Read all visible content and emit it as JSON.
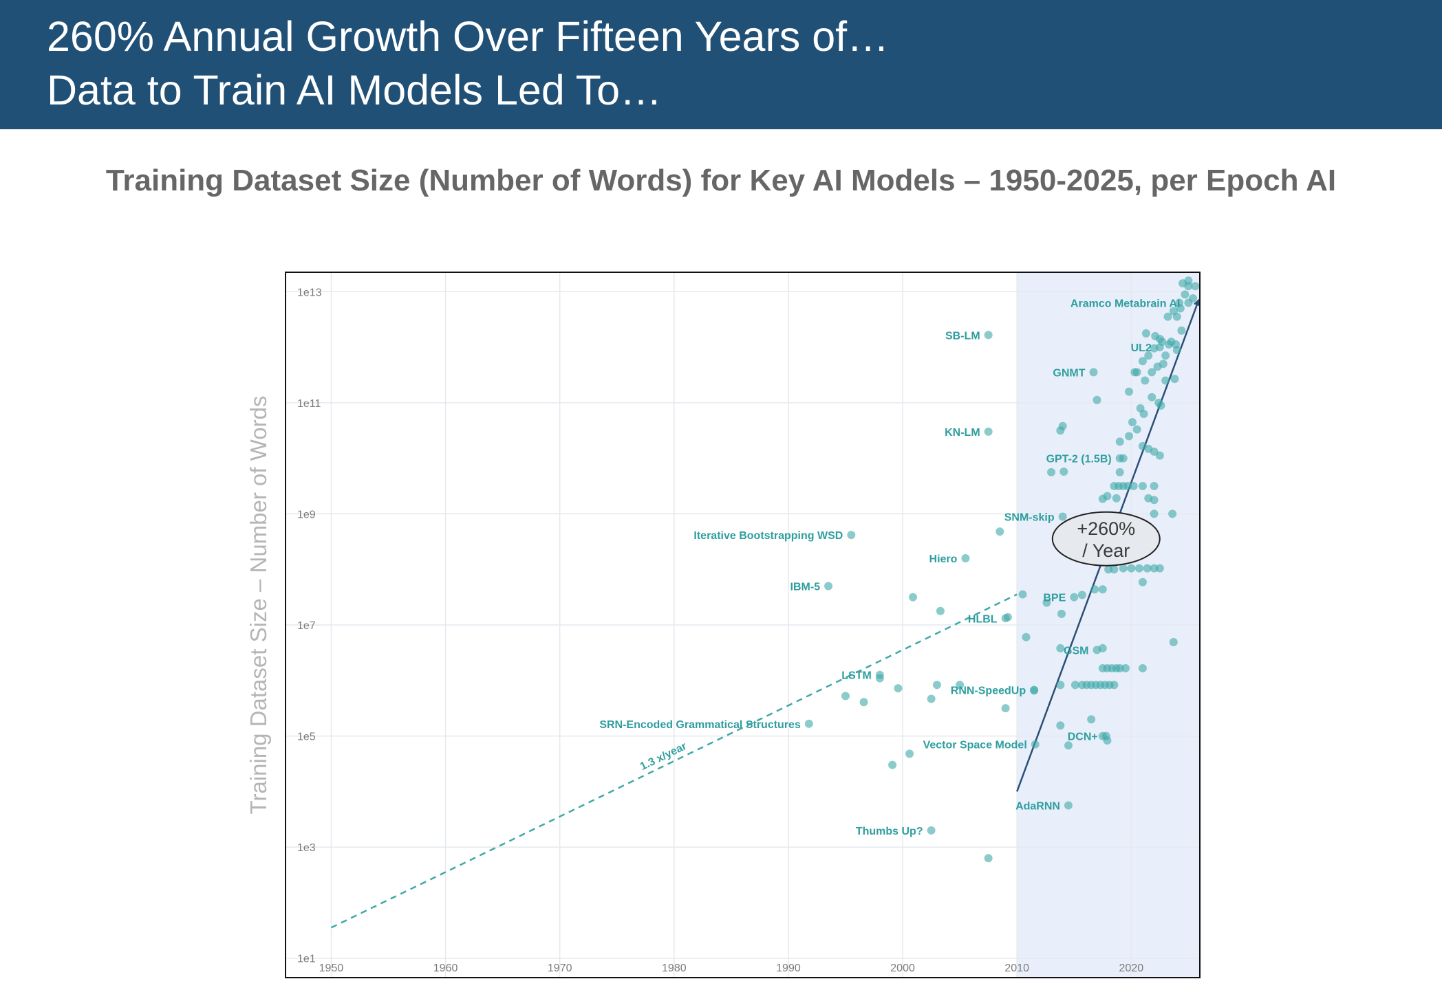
{
  "header": {
    "line1": "260% Annual Growth Over Fifteen Years of…",
    "line2": "Data to Train AI Models Led To…"
  },
  "subtitle": "Training Dataset Size (Number of Words) for Key AI Models – 1950-2025, per Epoch AI",
  "colors": {
    "header_bg": "#215076",
    "point": "#3fa8a8",
    "label": "#2e9e9e",
    "highlight_bg": "#e8effa",
    "trend_arrow": "#2c4d75"
  },
  "chart_data": {
    "type": "scatter",
    "title": "Training Dataset Size (Number of Words) for Key AI Models – 1950-2025, per Epoch AI",
    "xlabel": "",
    "ylabel": "Training Dataset Size – Number of Words",
    "x_scale": "linear",
    "y_scale": "log",
    "xlim": [
      1946,
      2026
    ],
    "ylim_log10": [
      0.65,
      13.35
    ],
    "x_ticks": [
      "1950",
      "1960",
      "1970",
      "1980",
      "1990",
      "2000",
      "2010",
      "2020"
    ],
    "x_tick_values": [
      1950,
      1960,
      1970,
      1980,
      1990,
      2000,
      2010,
      2020
    ],
    "y_ticks": [
      "1e1",
      "1e3",
      "1e5",
      "1e7",
      "1e9",
      "1e11",
      "1e13"
    ],
    "y_tick_exponents": [
      1,
      3,
      5,
      7,
      9,
      11,
      13
    ],
    "grid": true,
    "highlight_region": {
      "x_from": 2010,
      "x_to": 2026
    },
    "trends": [
      {
        "label": "1.3 x/year",
        "style": "dashed",
        "from": [
          1950,
          1.55
        ],
        "to": [
          2010,
          7.55
        ]
      },
      {
        "label": "+260% / Year",
        "style": "arrow",
        "from": [
          2010,
          4.0
        ],
        "to": [
          2025.9,
          12.85
        ]
      }
    ],
    "annotation": {
      "line1": "+260%",
      "line2": "/ Year",
      "x": 2017.8,
      "y": 8.55
    },
    "labeled_models": [
      {
        "name": "SB-LM",
        "x": 2007.5,
        "y": 12.22
      },
      {
        "name": "Aramco Metabrain AI",
        "x": 2025.0,
        "y": 12.8
      },
      {
        "name": "UL2",
        "x": 2022.5,
        "y": 12.0
      },
      {
        "name": "GNMT",
        "x": 2016.7,
        "y": 11.55
      },
      {
        "name": "KN-LM",
        "x": 2007.5,
        "y": 10.48
      },
      {
        "name": "GPT-2 (1.5B)",
        "x": 2019.0,
        "y": 10.0
      },
      {
        "name": "SNM-skip",
        "x": 2014.0,
        "y": 8.95
      },
      {
        "name": "Iterative Bootstrapping WSD",
        "x": 1995.5,
        "y": 8.62
      },
      {
        "name": "Hiero",
        "x": 2005.5,
        "y": 8.2
      },
      {
        "name": "IBM-5",
        "x": 1993.5,
        "y": 7.7
      },
      {
        "name": "BPE",
        "x": 2015.0,
        "y": 7.5
      },
      {
        "name": "HLBL",
        "x": 2009.0,
        "y": 7.12
      },
      {
        "name": "GSM",
        "x": 2017.0,
        "y": 6.55
      },
      {
        "name": "LSTM",
        "x": 1998.0,
        "y": 6.1
      },
      {
        "name": "RNN-SpeedUp",
        "x": 2011.5,
        "y": 5.83
      },
      {
        "name": "SRN-Encoded Grammatical Structures",
        "x": 1991.8,
        "y": 5.22
      },
      {
        "name": "Vector Space Model",
        "x": 2011.6,
        "y": 4.85
      },
      {
        "name": "DCN+",
        "x": 2017.8,
        "y": 5.0
      },
      {
        "name": "AdaRNN",
        "x": 2014.5,
        "y": 3.75
      },
      {
        "name": "Thumbs Up?",
        "x": 2002.5,
        "y": 3.3
      }
    ],
    "other_points": [
      [
        1995.0,
        5.72
      ],
      [
        1996.6,
        5.61
      ],
      [
        1998.0,
        6.04
      ],
      [
        1999.6,
        5.86
      ],
      [
        2000.9,
        7.5
      ],
      [
        2003.3,
        7.25
      ],
      [
        2003.0,
        5.92
      ],
      [
        2005.0,
        5.92
      ],
      [
        2002.5,
        5.67
      ],
      [
        1999.1,
        4.48
      ],
      [
        2000.6,
        4.68
      ],
      [
        2007.5,
        2.8
      ],
      [
        2008.5,
        8.68
      ],
      [
        2009.0,
        5.5
      ],
      [
        2009.2,
        7.14
      ],
      [
        2010.5,
        7.55
      ],
      [
        2010.8,
        6.78
      ],
      [
        2011.5,
        5.82
      ],
      [
        2012.6,
        7.4
      ],
      [
        2013.0,
        9.75
      ],
      [
        2013.8,
        5.19
      ],
      [
        2013.9,
        7.2
      ],
      [
        2013.8,
        6.58
      ],
      [
        2014.1,
        9.76
      ],
      [
        2013.8,
        10.5
      ],
      [
        2014.0,
        10.58
      ],
      [
        2014.5,
        4.83
      ],
      [
        2013.8,
        5.92
      ],
      [
        2015.1,
        5.92
      ],
      [
        2015.7,
        5.92
      ],
      [
        2016.1,
        5.92
      ],
      [
        2016.5,
        5.92
      ],
      [
        2016.9,
        5.92
      ],
      [
        2017.3,
        5.92
      ],
      [
        2017.7,
        5.92
      ],
      [
        2018.1,
        5.92
      ],
      [
        2018.5,
        5.92
      ],
      [
        2015.7,
        7.54
      ],
      [
        2016.5,
        5.3
      ],
      [
        2016.8,
        7.64
      ],
      [
        2017.5,
        7.64
      ],
      [
        2017.5,
        6.58
      ],
      [
        2017.5,
        6.22
      ],
      [
        2017.9,
        6.22
      ],
      [
        2018.3,
        6.22
      ],
      [
        2018.7,
        6.22
      ],
      [
        2019.0,
        6.22
      ],
      [
        2019.5,
        6.22
      ],
      [
        2021.0,
        6.22
      ],
      [
        2017.5,
        5.0
      ],
      [
        2017.9,
        4.92
      ],
      [
        2017.0,
        11.05
      ],
      [
        2017.5,
        9.27
      ],
      [
        2017.9,
        9.32
      ],
      [
        2018.7,
        9.28
      ],
      [
        2018.5,
        9.5
      ],
      [
        2018.9,
        9.5
      ],
      [
        2019.3,
        9.5
      ],
      [
        2019.7,
        9.5
      ],
      [
        2020.2,
        9.5
      ],
      [
        2021.0,
        9.5
      ],
      [
        2022.0,
        9.5
      ],
      [
        2018.0,
        8.0
      ],
      [
        2018.5,
        8.0
      ],
      [
        2019.3,
        8.02
      ],
      [
        2020.0,
        8.02
      ],
      [
        2020.7,
        8.02
      ],
      [
        2021.4,
        8.02
      ],
      [
        2022.0,
        8.02
      ],
      [
        2022.5,
        8.02
      ],
      [
        2021.0,
        7.77
      ],
      [
        2019.0,
        9.75
      ],
      [
        2019.3,
        10.0
      ],
      [
        2019.0,
        10.3
      ],
      [
        2019.8,
        10.4
      ],
      [
        2020.1,
        10.65
      ],
      [
        2020.5,
        10.52
      ],
      [
        2021.0,
        10.22
      ],
      [
        2021.5,
        10.17
      ],
      [
        2022.0,
        10.12
      ],
      [
        2022.5,
        10.05
      ],
      [
        2021.5,
        9.28
      ],
      [
        2022.0,
        9.25
      ],
      [
        2022.0,
        9.0
      ],
      [
        2023.6,
        9.0
      ],
      [
        2023.7,
        6.69
      ],
      [
        2019.8,
        11.2
      ],
      [
        2020.3,
        11.55
      ],
      [
        2020.8,
        10.9
      ],
      [
        2021.1,
        10.8
      ],
      [
        2021.8,
        11.1
      ],
      [
        2022.4,
        11.0
      ],
      [
        2022.6,
        10.95
      ],
      [
        2023.0,
        11.4
      ],
      [
        2023.8,
        11.43
      ],
      [
        2020.5,
        11.55
      ],
      [
        2021.0,
        11.75
      ],
      [
        2021.5,
        11.85
      ],
      [
        2022.0,
        11.98
      ],
      [
        2022.5,
        12.15
      ],
      [
        2023.0,
        11.85
      ],
      [
        2023.5,
        12.1
      ],
      [
        2024.0,
        11.95
      ],
      [
        2021.2,
        11.4
      ],
      [
        2021.8,
        11.55
      ],
      [
        2022.3,
        11.65
      ],
      [
        2022.8,
        11.7
      ],
      [
        2023.3,
        12.05
      ],
      [
        2023.9,
        12.05
      ],
      [
        2024.4,
        12.3
      ],
      [
        2021.3,
        12.25
      ],
      [
        2022.1,
        12.2
      ],
      [
        2022.7,
        12.1
      ],
      [
        2023.2,
        12.55
      ],
      [
        2023.7,
        12.65
      ],
      [
        2024.2,
        12.8
      ],
      [
        2024.7,
        12.95
      ],
      [
        2025.0,
        13.1
      ],
      [
        2025.4,
        12.88
      ],
      [
        2024.5,
        13.15
      ],
      [
        2025.0,
        13.2
      ],
      [
        2025.6,
        13.1
      ],
      [
        2024.0,
        12.55
      ],
      [
        2024.3,
        12.7
      ]
    ]
  }
}
